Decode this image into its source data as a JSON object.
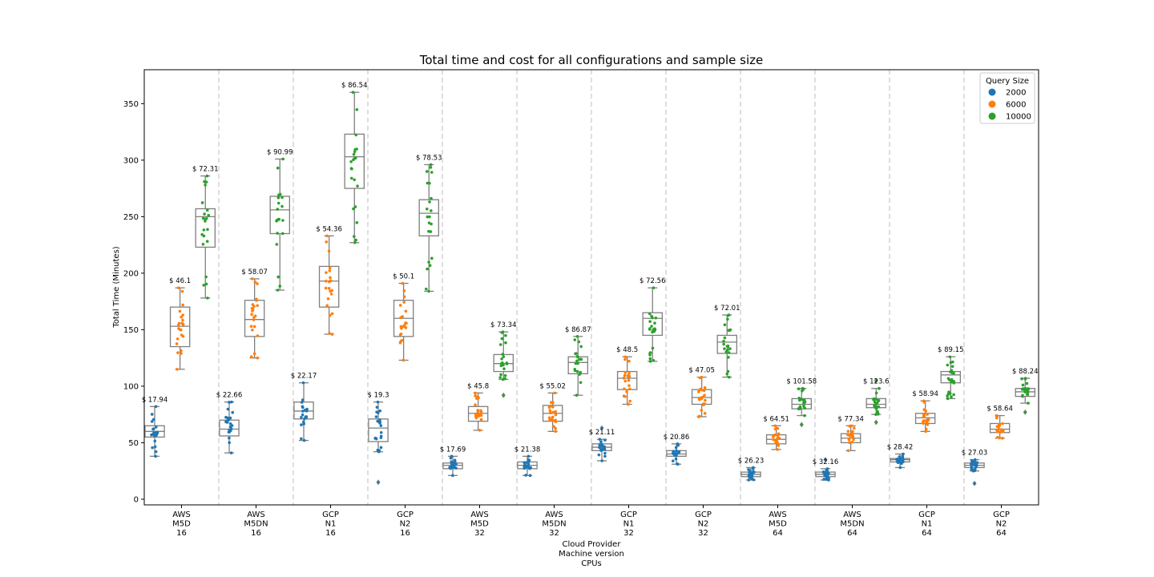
{
  "chart_data": {
    "type": "box",
    "title": "Total time and cost for all configurations and sample size",
    "ylabel": "Total Time (Minutes)",
    "xlabel_lines": [
      "Cloud Provider",
      "Machine version",
      "CPUs"
    ],
    "ylim": [
      -5,
      380
    ],
    "yticks": [
      0,
      50,
      100,
      150,
      200,
      250,
      300,
      350
    ],
    "legend": {
      "title": "Query Size",
      "placement": "top-right",
      "items": [
        {
          "label": "2000",
          "color": "#1f77b4"
        },
        {
          "label": "6000",
          "color": "#ff7f0e"
        },
        {
          "label": "10000",
          "color": "#2ca02c"
        }
      ]
    },
    "categories": [
      [
        "AWS",
        "M5D",
        "16"
      ],
      [
        "AWS",
        "M5DN",
        "16"
      ],
      [
        "GCP",
        "N1",
        "16"
      ],
      [
        "GCP",
        "N2",
        "16"
      ],
      [
        "AWS",
        "M5D",
        "32"
      ],
      [
        "AWS",
        "M5DN",
        "32"
      ],
      [
        "GCP",
        "N1",
        "32"
      ],
      [
        "GCP",
        "N2",
        "32"
      ],
      [
        "AWS",
        "M5D",
        "64"
      ],
      [
        "AWS",
        "M5DN",
        "64"
      ],
      [
        "GCP",
        "N1",
        "64"
      ],
      [
        "GCP",
        "N2",
        "64"
      ]
    ],
    "series": [
      {
        "name": "2000",
        "boxes": [
          {
            "min": 38,
            "q1": 55,
            "median": 60,
            "q3": 65,
            "max": 82,
            "outliers": [],
            "cost": "$ 17.94"
          },
          {
            "min": 41,
            "q1": 56,
            "median": 62,
            "q3": 70,
            "max": 86,
            "outliers": [],
            "cost": "$ 22.66"
          },
          {
            "min": 52,
            "q1": 71,
            "median": 78,
            "q3": 86,
            "max": 103,
            "outliers": [],
            "cost": "$ 22.17"
          },
          {
            "min": 42,
            "q1": 51,
            "median": 63,
            "q3": 71,
            "max": 86,
            "outliers": [
              15
            ],
            "cost": "$ 19.3"
          },
          {
            "min": 21,
            "q1": 27,
            "median": 30,
            "q3": 32,
            "max": 38,
            "outliers": [],
            "cost": "$ 17.69"
          },
          {
            "min": 21,
            "q1": 27,
            "median": 30,
            "q3": 33,
            "max": 38,
            "outliers": [],
            "cost": "$ 21.38"
          },
          {
            "min": 34,
            "q1": 43,
            "median": 46,
            "q3": 49,
            "max": 53,
            "outliers": [
              63
            ],
            "cost": "$ 21.11"
          },
          {
            "min": 31,
            "q1": 38,
            "median": 40,
            "q3": 43,
            "max": 49,
            "outliers": [],
            "cost": "$ 20.86"
          },
          {
            "min": 17,
            "q1": 20,
            "median": 22,
            "q3": 24,
            "max": 28,
            "outliers": [],
            "cost": "$ 26.23"
          },
          {
            "min": 17,
            "q1": 20,
            "median": 22,
            "q3": 24,
            "max": 27,
            "outliers": [
              35
            ],
            "cost": "$ 32.16"
          },
          {
            "min": 28,
            "q1": 33,
            "median": 35,
            "q3": 36,
            "max": 40,
            "outliers": [],
            "cost": "$ 28.42"
          },
          {
            "min": 25,
            "q1": 28,
            "median": 30,
            "q3": 32,
            "max": 35,
            "outliers": [
              14
            ],
            "cost": "$ 27.03"
          }
        ]
      },
      {
        "name": "6000",
        "boxes": [
          {
            "min": 115,
            "q1": 135,
            "median": 153,
            "q3": 170,
            "max": 187,
            "outliers": [],
            "cost": "$ 46.1"
          },
          {
            "min": 125,
            "q1": 144,
            "median": 159,
            "q3": 176,
            "max": 195,
            "outliers": [],
            "cost": "$ 58.07"
          },
          {
            "min": 146,
            "q1": 170,
            "median": 193,
            "q3": 206,
            "max": 233,
            "outliers": [],
            "cost": "$ 54.36"
          },
          {
            "min": 123,
            "q1": 144,
            "median": 160,
            "q3": 176,
            "max": 191,
            "outliers": [],
            "cost": "$ 50.1"
          },
          {
            "min": 61,
            "q1": 69,
            "median": 76,
            "q3": 82,
            "max": 94,
            "outliers": [],
            "cost": "$ 45.8"
          },
          {
            "min": 60,
            "q1": 69,
            "median": 76,
            "q3": 83,
            "max": 94,
            "outliers": [],
            "cost": "$ 55.02"
          },
          {
            "min": 84,
            "q1": 97,
            "median": 107,
            "q3": 113,
            "max": 126,
            "outliers": [],
            "cost": "$ 48.5"
          },
          {
            "min": 73,
            "q1": 84,
            "median": 90,
            "q3": 97,
            "max": 108,
            "outliers": [],
            "cost": "$ 47.05"
          },
          {
            "min": 44,
            "q1": 49,
            "median": 53,
            "q3": 57,
            "max": 65,
            "outliers": [],
            "cost": "$ 64.51"
          },
          {
            "min": 43,
            "q1": 50,
            "median": 54,
            "q3": 58,
            "max": 65,
            "outliers": [],
            "cost": "$ 77.34"
          },
          {
            "min": 60,
            "q1": 67,
            "median": 72,
            "q3": 76,
            "max": 87,
            "outliers": [],
            "cost": "$ 58.94"
          },
          {
            "min": 54,
            "q1": 59,
            "median": 62,
            "q3": 67,
            "max": 74,
            "outliers": [],
            "cost": "$ 58.64"
          }
        ]
      },
      {
        "name": "10000",
        "boxes": [
          {
            "min": 178,
            "q1": 223,
            "median": 250,
            "q3": 257,
            "max": 286,
            "outliers": [],
            "cost": "$ 72.31"
          },
          {
            "min": 185,
            "q1": 235,
            "median": 256,
            "q3": 268,
            "max": 301,
            "outliers": [],
            "cost": "$ 90.99"
          },
          {
            "min": 227,
            "q1": 275,
            "median": 303,
            "q3": 323,
            "max": 360,
            "outliers": [],
            "cost": "$ 86.54"
          },
          {
            "min": 184,
            "q1": 233,
            "median": 253,
            "q3": 265,
            "max": 296,
            "outliers": [],
            "cost": "$ 78.53"
          },
          {
            "min": 106,
            "q1": 113,
            "median": 120,
            "q3": 128,
            "max": 148,
            "outliers": [
              92
            ],
            "cost": "$ 73.34"
          },
          {
            "min": 92,
            "q1": 111,
            "median": 121,
            "q3": 126,
            "max": 144,
            "outliers": [],
            "cost": "$ 86.87"
          },
          {
            "min": 122,
            "q1": 145,
            "median": 160,
            "q3": 165,
            "max": 187,
            "outliers": [],
            "cost": "$ 72.56"
          },
          {
            "min": 108,
            "q1": 129,
            "median": 139,
            "q3": 145,
            "max": 163,
            "outliers": [],
            "cost": "$ 72.01"
          },
          {
            "min": 74,
            "q1": 80,
            "median": 84,
            "q3": 89,
            "max": 98,
            "outliers": [
              66
            ],
            "cost": "$ 101.58"
          },
          {
            "min": 75,
            "q1": 81,
            "median": 84,
            "q3": 89,
            "max": 98,
            "outliers": [
              68,
              105
            ],
            "cost": "$ 123.6"
          },
          {
            "min": 89,
            "q1": 103,
            "median": 110,
            "q3": 113,
            "max": 126,
            "outliers": [],
            "cost": "$ 89.15"
          },
          {
            "min": 85,
            "q1": 91,
            "median": 95,
            "q3": 98,
            "max": 107,
            "outliers": [
              77
            ],
            "cost": "$ 88.24"
          }
        ]
      }
    ]
  }
}
